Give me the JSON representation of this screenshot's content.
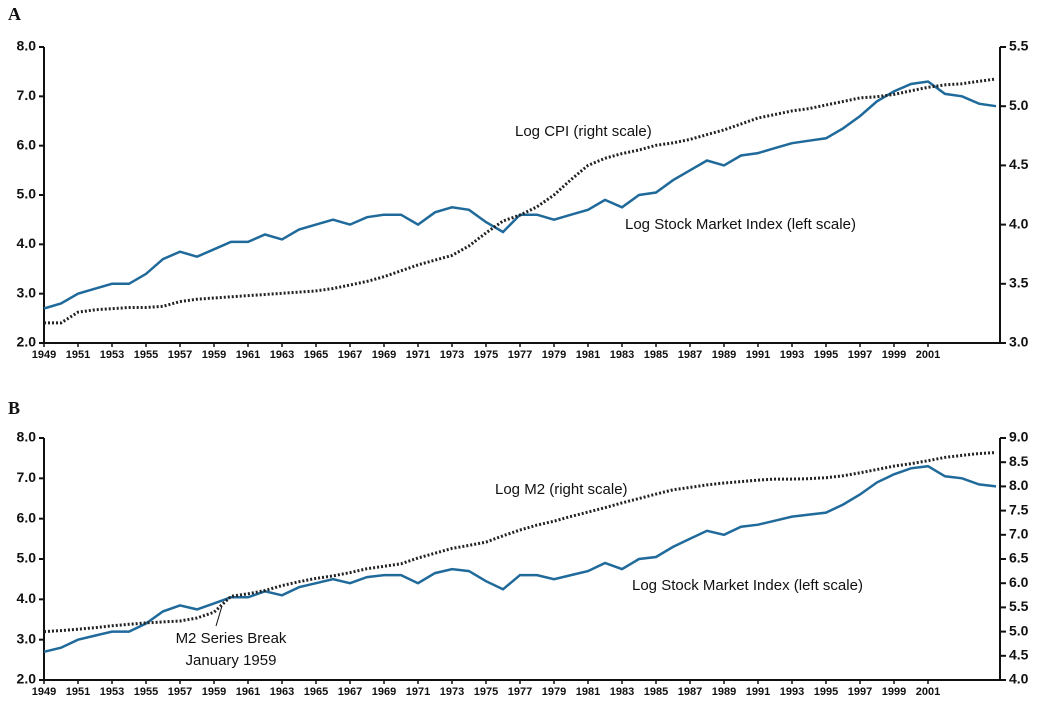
{
  "chart_data": [
    {
      "type": "line",
      "title": "A",
      "x": [
        1949,
        1950,
        1951,
        1952,
        1953,
        1954,
        1955,
        1956,
        1957,
        1958,
        1959,
        1960,
        1961,
        1962,
        1963,
        1964,
        1965,
        1966,
        1967,
        1968,
        1969,
        1970,
        1971,
        1972,
        1973,
        1974,
        1975,
        1976,
        1977,
        1978,
        1979,
        1980,
        1981,
        1982,
        1983,
        1984,
        1985,
        1986,
        1987,
        1988,
        1989,
        1990,
        1991,
        1992,
        1993,
        1994,
        1995,
        1996,
        1997,
        1998,
        1999,
        2000,
        2001,
        2002,
        2003,
        2004,
        2005
      ],
      "xlim": [
        1949,
        2005
      ],
      "xticks": [
        1949,
        1951,
        1953,
        1955,
        1957,
        1959,
        1961,
        1963,
        1965,
        1967,
        1969,
        1971,
        1973,
        1975,
        1977,
        1979,
        1981,
        1983,
        1985,
        1987,
        1989,
        1991,
        1993,
        1995,
        1997,
        1999,
        2001
      ],
      "ylim": [
        2,
        8
      ],
      "yticks": [
        {
          "value": 2,
          "label": "2.0"
        },
        {
          "value": 3,
          "label": "3.0"
        },
        {
          "value": 4,
          "label": "4.0"
        },
        {
          "value": 5,
          "label": "5.0"
        },
        {
          "value": 6,
          "label": "6.0"
        },
        {
          "value": 7,
          "label": "7.0"
        },
        {
          "value": 8,
          "label": "8.0"
        }
      ],
      "y2lim": [
        3,
        5.5
      ],
      "y2ticks": [
        {
          "value": 3,
          "label": "3.0"
        },
        3.5,
        {
          "value": 4,
          "label": "4.0"
        },
        4.5,
        {
          "value": 5,
          "label": "5.0"
        },
        5.5
      ],
      "series": [
        {
          "name": "Log Stock Market Index (left scale)",
          "color": "#1f6a9a",
          "values": [
            2.7,
            2.8,
            3.0,
            3.1,
            3.2,
            3.2,
            3.4,
            3.7,
            3.85,
            3.75,
            3.9,
            4.05,
            4.05,
            4.2,
            4.1,
            4.3,
            4.4,
            4.5,
            4.4,
            4.55,
            4.6,
            4.6,
            4.4,
            4.65,
            4.75,
            4.7,
            4.45,
            4.25,
            4.6,
            4.6,
            4.5,
            4.6,
            4.7,
            4.9,
            4.75,
            5.0,
            5.05,
            5.3,
            5.5,
            5.7,
            5.6,
            5.8,
            5.85,
            5.95,
            6.05,
            6.1,
            6.15,
            6.35,
            6.6,
            6.9,
            7.1,
            7.25,
            7.3,
            7.05,
            7.0,
            6.85,
            6.8
          ]
        },
        {
          "name": "Log CPI (right scale)",
          "color": "#222222",
          "axis": "y2",
          "dotted": true,
          "values": [
            3.17,
            3.17,
            3.26,
            3.28,
            3.29,
            3.3,
            3.3,
            3.31,
            3.35,
            3.37,
            3.38,
            3.39,
            3.4,
            3.41,
            3.42,
            3.43,
            3.44,
            3.46,
            3.49,
            3.52,
            3.56,
            3.61,
            3.66,
            3.7,
            3.74,
            3.82,
            3.93,
            4.03,
            4.08,
            4.15,
            4.25,
            4.38,
            4.5,
            4.56,
            4.6,
            4.63,
            4.67,
            4.69,
            4.72,
            4.76,
            4.8,
            4.85,
            4.9,
            4.93,
            4.96,
            4.98,
            5.01,
            5.04,
            5.07,
            5.08,
            5.1,
            5.13,
            5.16,
            5.18,
            5.19,
            5.21,
            5.23
          ]
        }
      ]
    },
    {
      "type": "line",
      "title": "B",
      "x": [
        1949,
        1950,
        1951,
        1952,
        1953,
        1954,
        1955,
        1956,
        1957,
        1958,
        1959,
        1960,
        1961,
        1962,
        1963,
        1964,
        1965,
        1966,
        1967,
        1968,
        1969,
        1970,
        1971,
        1972,
        1973,
        1974,
        1975,
        1976,
        1977,
        1978,
        1979,
        1980,
        1981,
        1982,
        1983,
        1984,
        1985,
        1986,
        1987,
        1988,
        1989,
        1990,
        1991,
        1992,
        1993,
        1994,
        1995,
        1996,
        1997,
        1998,
        1999,
        2000,
        2001,
        2002,
        2003,
        2004,
        2005
      ],
      "xlim": [
        1949,
        2005
      ],
      "xticks": [
        1949,
        1951,
        1953,
        1955,
        1957,
        1959,
        1961,
        1963,
        1965,
        1967,
        1969,
        1971,
        1973,
        1975,
        1977,
        1979,
        1981,
        1983,
        1985,
        1987,
        1989,
        1991,
        1993,
        1995,
        1997,
        1999,
        2001
      ],
      "ylim": [
        2,
        8
      ],
      "yticks": [
        {
          "value": 2,
          "label": "2.0"
        },
        {
          "value": 3,
          "label": "3.0"
        },
        {
          "value": 4,
          "label": "4.0"
        },
        {
          "value": 5,
          "label": "5.0"
        },
        {
          "value": 6,
          "label": "6.0"
        },
        {
          "value": 7,
          "label": "7.0"
        },
        {
          "value": 8,
          "label": "8.0"
        }
      ],
      "y2lim": [
        4,
        9
      ],
      "y2ticks": [
        {
          "value": 4,
          "label": "4.0"
        },
        4.5,
        {
          "value": 5,
          "label": "5.0"
        },
        5.5,
        {
          "value": 6,
          "label": "6.0"
        },
        6.5,
        {
          "value": 7,
          "label": "7.0"
        },
        7.5,
        {
          "value": 8,
          "label": "8.0"
        },
        8.5,
        {
          "value": 9,
          "label": "9.0"
        }
      ],
      "series": [
        {
          "name": "Log Stock Market Index (left scale)",
          "color": "#1f6a9a",
          "values": [
            2.7,
            2.8,
            3.0,
            3.1,
            3.2,
            3.2,
            3.4,
            3.7,
            3.85,
            3.75,
            3.9,
            4.05,
            4.05,
            4.2,
            4.1,
            4.3,
            4.4,
            4.5,
            4.4,
            4.55,
            4.6,
            4.6,
            4.4,
            4.65,
            4.75,
            4.7,
            4.45,
            4.25,
            4.6,
            4.6,
            4.5,
            4.6,
            4.7,
            4.9,
            4.75,
            5.0,
            5.05,
            5.3,
            5.5,
            5.7,
            5.6,
            5.8,
            5.85,
            5.95,
            6.05,
            6.1,
            6.15,
            6.35,
            6.6,
            6.9,
            7.1,
            7.25,
            7.3,
            7.05,
            7.0,
            6.85,
            6.8
          ]
        },
        {
          "name": "Log M2 (right scale)",
          "color": "#222222",
          "axis": "y2",
          "dotted": true,
          "values": [
            5.0,
            5.02,
            5.05,
            5.08,
            5.12,
            5.15,
            5.18,
            5.2,
            5.22,
            5.28,
            5.4,
            5.73,
            5.78,
            5.85,
            5.95,
            6.03,
            6.1,
            6.15,
            6.22,
            6.3,
            6.35,
            6.4,
            6.52,
            6.62,
            6.72,
            6.78,
            6.85,
            6.98,
            7.1,
            7.2,
            7.28,
            7.38,
            7.47,
            7.56,
            7.66,
            7.75,
            7.84,
            7.93,
            7.98,
            8.03,
            8.07,
            8.1,
            8.13,
            8.15,
            8.15,
            8.16,
            8.18,
            8.22,
            8.28,
            8.35,
            8.42,
            8.47,
            8.53,
            8.6,
            8.64,
            8.68,
            8.7
          ]
        }
      ],
      "annotations": [
        "M2 Series Break",
        "January 1959"
      ]
    }
  ]
}
